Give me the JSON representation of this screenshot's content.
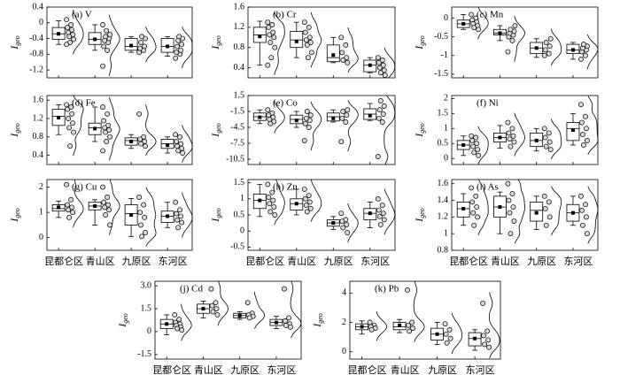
{
  "chart_data": [
    {
      "type": "box",
      "title": "(a) V",
      "ylabel": {
        "main": "I",
        "sub": "geo"
      },
      "ylim": [
        -1.4,
        0.4
      ],
      "yticks": [
        0.4,
        0,
        -0.4,
        -0.8,
        -1.2
      ],
      "boxes": [
        {
          "min": -0.55,
          "q1": -0.42,
          "median": -0.28,
          "q3": -0.12,
          "max": 0.05,
          "mean": -0.28,
          "points": [
            0.08,
            -0.05,
            -0.12,
            -0.18,
            -0.25,
            -0.3,
            -0.35,
            -0.42,
            -0.5,
            -0.55
          ]
        },
        {
          "min": -0.7,
          "q1": -0.55,
          "median": -0.42,
          "q3": -0.25,
          "max": -0.05,
          "mean": -0.42,
          "points": [
            -1.1,
            -0.7,
            -0.6,
            -0.5,
            -0.45,
            -0.4,
            -0.35,
            -0.3,
            -0.2,
            -0.05
          ]
        },
        {
          "min": -0.75,
          "q1": -0.7,
          "median": -0.6,
          "q3": -0.4,
          "max": -0.35,
          "mean": -0.58,
          "points": [
            -0.75,
            -0.7,
            -0.65,
            -0.6,
            -0.5,
            -0.4,
            -0.35
          ]
        },
        {
          "min": -0.85,
          "q1": -0.75,
          "median": -0.6,
          "q3": -0.4,
          "max": -0.35,
          "mean": -0.6,
          "points": [
            -0.9,
            -0.8,
            -0.75,
            -0.7,
            -0.6,
            -0.55,
            -0.45,
            -0.4,
            -0.35
          ]
        }
      ]
    },
    {
      "type": "box",
      "title": "(b) Cr",
      "ylabel": {
        "main": "I",
        "sub": "geo"
      },
      "ylim": [
        0.2,
        1.6
      ],
      "yticks": [
        1.6,
        1.2,
        0.8,
        0.4
      ],
      "boxes": [
        {
          "min": 0.45,
          "q1": 0.9,
          "median": 1.05,
          "q3": 1.2,
          "max": 1.32,
          "mean": 1.02,
          "points": [
            1.3,
            1.25,
            1.2,
            1.1,
            1.05,
            1.0,
            0.9,
            0.8,
            0.6,
            0.45
          ]
        },
        {
          "min": 0.6,
          "q1": 0.8,
          "median": 0.95,
          "q3": 1.12,
          "max": 1.3,
          "mean": 0.92,
          "points": [
            1.3,
            1.2,
            1.1,
            1.0,
            0.95,
            0.9,
            0.85,
            0.7,
            0.6
          ]
        },
        {
          "min": 0.5,
          "q1": 0.52,
          "median": 0.6,
          "q3": 0.85,
          "max": 1.0,
          "mean": 0.65,
          "points": [
            1.0,
            0.85,
            0.7,
            0.6,
            0.55,
            0.5
          ]
        },
        {
          "min": 0.3,
          "q1": 0.32,
          "median": 0.45,
          "q3": 0.55,
          "max": 0.6,
          "mean": 0.45,
          "points": [
            0.6,
            0.55,
            0.5,
            0.45,
            0.4,
            0.35,
            0.3,
            0.25
          ]
        }
      ]
    },
    {
      "type": "box",
      "title": "(c) Mn",
      "ylabel": {
        "main": "I",
        "sub": "geo"
      },
      "ylim": [
        -1.6,
        0.3
      ],
      "yticks": [
        0,
        -0.5,
        -1,
        -1.5
      ],
      "boxes": [
        {
          "min": -0.3,
          "q1": -0.25,
          "median": -0.15,
          "q3": -0.05,
          "max": 0.1,
          "mean": -0.15,
          "points": [
            0.1,
            0,
            -0.05,
            -0.1,
            -0.15,
            -0.2,
            -0.25,
            -0.3
          ]
        },
        {
          "min": -0.6,
          "q1": -0.45,
          "median": -0.4,
          "q3": -0.3,
          "max": -0.2,
          "mean": -0.4,
          "points": [
            -0.9,
            -0.6,
            -0.5,
            -0.45,
            -0.4,
            -0.35,
            -0.3,
            -0.2
          ]
        },
        {
          "min": -1.05,
          "q1": -0.95,
          "median": -0.8,
          "q3": -0.65,
          "max": -0.55,
          "mean": -0.8,
          "points": [
            -1.0,
            -0.95,
            -0.85,
            -0.75,
            -0.65,
            -0.55
          ]
        },
        {
          "min": -1.1,
          "q1": -0.95,
          "median": -0.85,
          "q3": -0.7,
          "max": -0.65,
          "mean": -0.85,
          "points": [
            -1.1,
            -1.0,
            -0.9,
            -0.85,
            -0.8,
            -0.75,
            -0.7
          ]
        }
      ]
    },
    {
      "type": "box",
      "title": "(d) Fe",
      "ylabel": {
        "main": "I",
        "sub": "geo"
      },
      "ylim": [
        0.2,
        1.7
      ],
      "yticks": [
        1.6,
        1.2,
        0.8,
        0.4
      ],
      "boxes": [
        {
          "min": 0.85,
          "q1": 1.05,
          "median": 1.25,
          "q3": 1.4,
          "max": 1.5,
          "mean": 1.22,
          "points": [
            1.5,
            1.45,
            1.4,
            1.3,
            1.2,
            1.1,
            1.0,
            0.9,
            0.6
          ]
        },
        {
          "min": 0.7,
          "q1": 0.85,
          "median": 1.0,
          "q3": 1.1,
          "max": 1.45,
          "mean": 0.98,
          "points": [
            1.45,
            1.3,
            1.15,
            1.05,
            1.0,
            0.95,
            0.9,
            0.8,
            0.7,
            0.5
          ]
        },
        {
          "min": 0.55,
          "q1": 0.62,
          "median": 0.72,
          "q3": 0.78,
          "max": 0.85,
          "mean": 0.7,
          "points": [
            1.3,
            0.8,
            0.75,
            0.7,
            0.65,
            0.6
          ]
        },
        {
          "min": 0.45,
          "q1": 0.55,
          "median": 0.65,
          "q3": 0.75,
          "max": 0.8,
          "mean": 0.62,
          "points": [
            0.85,
            0.8,
            0.7,
            0.65,
            0.6,
            0.55,
            0.5,
            0.45
          ]
        }
      ]
    },
    {
      "type": "box",
      "title": "(e) Co",
      "ylabel": {
        "main": "I",
        "sub": "geo"
      },
      "ylim": [
        -11.5,
        1.5
      ],
      "yticks": [
        1.5,
        -1.5,
        -4.5,
        -7.5,
        -10.5
      ],
      "boxes": [
        {
          "min": -3.8,
          "q1": -3.2,
          "median": -2.5,
          "q3": -1.8,
          "max": -1.2,
          "mean": -2.6,
          "points": [
            -1.2,
            -1.8,
            -2.2,
            -2.6,
            -3.0,
            -3.4,
            -3.8
          ]
        },
        {
          "min": -4.5,
          "q1": -3.8,
          "median": -3,
          "q3": -2.2,
          "max": -1.5,
          "mean": -3.2,
          "points": [
            -7,
            -4.5,
            -3.8,
            -3.2,
            -2.8,
            -2.2,
            -1.5
          ]
        },
        {
          "min": -3.5,
          "q1": -3.3,
          "median": -2.5,
          "q3": -1.8,
          "max": -1.2,
          "mean": -2.8,
          "points": [
            -7.2,
            -3.5,
            -2.8,
            -2.2,
            -1.5,
            -1.2
          ]
        },
        {
          "min": -3.2,
          "q1": -3,
          "median": -2,
          "q3": -1,
          "max": 0,
          "mean": -2.3,
          "points": [
            -10,
            -3.5,
            -2.8,
            -2,
            -1.2,
            -0.5,
            0.5
          ]
        }
      ]
    },
    {
      "type": "box",
      "title": "(f) Ni",
      "ylabel": {
        "main": "I",
        "sub": "geo"
      },
      "ylim": [
        -0.2,
        2.1
      ],
      "yticks": [
        2,
        1.5,
        1,
        0.5,
        0
      ],
      "boxes": [
        {
          "min": 0.1,
          "q1": 0.3,
          "median": 0.45,
          "q3": 0.6,
          "max": 0.75,
          "mean": 0.45,
          "points": [
            0.75,
            0.7,
            0.6,
            0.5,
            0.4,
            0.3,
            0.2,
            0.1
          ]
        },
        {
          "min": 0.35,
          "q1": 0.55,
          "median": 0.7,
          "q3": 0.85,
          "max": 1.1,
          "mean": 0.7,
          "points": [
            1.2,
            1.0,
            0.85,
            0.75,
            0.65,
            0.55,
            0.4
          ]
        },
        {
          "min": 0.25,
          "q1": 0.4,
          "median": 0.6,
          "q3": 0.85,
          "max": 1.0,
          "mean": 0.6,
          "points": [
            1.0,
            0.85,
            0.7,
            0.55,
            0.4,
            0.3
          ]
        },
        {
          "min": 0.45,
          "q1": 0.6,
          "median": 1.0,
          "q3": 1.2,
          "max": 1.5,
          "mean": 0.95,
          "points": [
            1.8,
            1.4,
            1.2,
            1.0,
            0.8,
            0.6,
            0.45
          ]
        }
      ]
    },
    {
      "type": "box",
      "title": "(g) Cu",
      "ylabel": {
        "main": "I",
        "sub": "geo"
      },
      "ylim": [
        -0.5,
        2.3
      ],
      "yticks": [
        2,
        1,
        0
      ],
      "categories": [
        "昆都仑区",
        "青山区",
        "九原区",
        "东河区"
      ],
      "boxes": [
        {
          "min": 0.8,
          "q1": 1.05,
          "median": 1.15,
          "q3": 1.3,
          "max": 1.45,
          "mean": 1.2,
          "points": [
            2.1,
            1.5,
            1.3,
            1.2,
            1.1,
            1.0,
            0.8
          ]
        },
        {
          "min": 0.5,
          "q1": 1.1,
          "median": 1.25,
          "q3": 1.4,
          "max": 1.5,
          "mean": 1.25,
          "points": [
            2.0,
            1.6,
            1.4,
            1.3,
            1.2,
            1.1,
            0.9,
            0.5
          ]
        },
        {
          "min": 0.05,
          "q1": 0.5,
          "median": 0.95,
          "q3": 1.3,
          "max": 1.55,
          "mean": 0.9,
          "points": [
            1.6,
            1.3,
            1.0,
            0.8,
            0.5,
            0.2,
            0.05
          ]
        },
        {
          "min": 0.4,
          "q1": 0.6,
          "median": 0.85,
          "q3": 1.05,
          "max": 1.4,
          "mean": 0.85,
          "points": [
            1.4,
            1.1,
            0.95,
            0.85,
            0.7,
            0.6,
            0.4
          ]
        }
      ]
    },
    {
      "type": "box",
      "title": "(h) Zn",
      "ylabel": {
        "main": "I",
        "sub": "geo"
      },
      "ylim": [
        -0.6,
        1.6
      ],
      "yticks": [
        1.5,
        1,
        0.5,
        0,
        -0.5
      ],
      "categories": [
        "昆都仑区",
        "青山区",
        "九原区",
        "东河区"
      ],
      "boxes": [
        {
          "min": 0.45,
          "q1": 0.7,
          "median": 0.95,
          "q3": 1.15,
          "max": 1.45,
          "mean": 0.95,
          "points": [
            1.45,
            1.2,
            1.05,
            0.95,
            0.85,
            0.75,
            0.6,
            0.5
          ]
        },
        {
          "min": 0.5,
          "q1": 0.65,
          "median": 0.85,
          "q3": 1.0,
          "max": 1.3,
          "mean": 0.85,
          "points": [
            1.3,
            1.1,
            1.0,
            0.9,
            0.8,
            0.7,
            0.6
          ]
        },
        {
          "min": 0.05,
          "q1": 0.15,
          "median": 0.25,
          "q3": 0.35,
          "max": 0.45,
          "mean": 0.25,
          "points": [
            0.55,
            0.35,
            0.3,
            0.2,
            0.1,
            -0.05
          ]
        },
        {
          "min": 0.1,
          "q1": 0.35,
          "median": 0.55,
          "q3": 0.7,
          "max": 0.9,
          "mean": 0.55,
          "points": [
            1.0,
            0.8,
            0.65,
            0.55,
            0.45,
            0.35,
            0.2
          ]
        }
      ]
    },
    {
      "type": "box",
      "title": "(i) As",
      "ylabel": {
        "main": "I",
        "sub": "geo"
      },
      "ylim": [
        0.8,
        1.65
      ],
      "yticks": [
        1.6,
        1.4,
        1.2,
        1,
        0.8
      ],
      "categories": [
        "昆都仑区",
        "青山区",
        "九原区",
        "东河区"
      ],
      "boxes": [
        {
          "min": 1.1,
          "q1": 1.2,
          "median": 1.3,
          "q3": 1.38,
          "max": 1.48,
          "mean": 1.3,
          "points": [
            1.55,
            1.45,
            1.38,
            1.32,
            1.25,
            1.2,
            1.1
          ]
        },
        {
          "min": 1.0,
          "q1": 1.2,
          "median": 1.32,
          "q3": 1.45,
          "max": 1.5,
          "mean": 1.32,
          "points": [
            1.6,
            1.48,
            1.4,
            1.32,
            1.25,
            1.15,
            1.0
          ]
        },
        {
          "min": 1.05,
          "q1": 1.15,
          "median": 1.28,
          "q3": 1.38,
          "max": 1.45,
          "mean": 1.25,
          "points": [
            1.45,
            1.38,
            1.3,
            1.2,
            1.1
          ]
        },
        {
          "min": 1.1,
          "q1": 1.15,
          "median": 1.25,
          "q3": 1.35,
          "max": 1.45,
          "mean": 1.25,
          "points": [
            1.45,
            1.35,
            1.28,
            1.2,
            1.1,
            1.0
          ]
        }
      ]
    },
    {
      "type": "box",
      "title": "(j) Cd",
      "ylabel": {
        "main": "I",
        "sub": "geo"
      },
      "ylim": [
        -1.8,
        3.3
      ],
      "yticks": [
        {
          "value": 3,
          "label": "3.0"
        },
        1.5,
        0,
        -1.5
      ],
      "categories": [
        "昆都仑区",
        "青山区",
        "九原区",
        "东河区"
      ],
      "boxes": [
        {
          "min": -0.2,
          "q1": 0.2,
          "median": 0.5,
          "q3": 0.8,
          "max": 1.1,
          "mean": 0.5,
          "points": [
            1.1,
            0.8,
            0.6,
            0.5,
            0.4,
            0.3,
            0.2,
            0.1
          ]
        },
        {
          "min": 0.9,
          "q1": 1.2,
          "median": 1.5,
          "q3": 1.8,
          "max": 2.0,
          "mean": 1.5,
          "points": [
            2.8,
            1.9,
            1.7,
            1.5,
            1.3,
            1.1
          ]
        },
        {
          "min": 0.8,
          "q1": 0.9,
          "median": 1.05,
          "q3": 1.2,
          "max": 1.3,
          "mean": 1.05,
          "points": [
            1.9,
            1.2,
            1.1,
            1.0,
            0.9
          ]
        },
        {
          "min": 0.2,
          "q1": 0.4,
          "median": 0.6,
          "q3": 0.8,
          "max": 1.0,
          "mean": 0.6,
          "points": [
            2.8,
            0.9,
            0.7,
            0.5,
            0.4,
            0.3
          ]
        }
      ]
    },
    {
      "type": "box",
      "title": "(k) Pb",
      "ylabel": {
        "main": "I",
        "sub": "geo"
      },
      "ylim": [
        -0.5,
        4.8
      ],
      "yticks": [
        4,
        2,
        0
      ],
      "categories": [
        "昆都仑区",
        "青山区",
        "九原区",
        "东河区"
      ],
      "boxes": [
        {
          "min": 1.2,
          "q1": 1.5,
          "median": 1.7,
          "q3": 1.9,
          "max": 2.1,
          "mean": 1.7,
          "points": [
            2.0,
            1.8,
            1.7,
            1.6,
            1.5
          ]
        },
        {
          "min": 1.3,
          "q1": 1.5,
          "median": 1.7,
          "q3": 2.0,
          "max": 2.2,
          "mean": 1.8,
          "points": [
            4.2,
            2.0,
            1.8,
            1.6,
            1.4
          ]
        },
        {
          "min": 0.5,
          "q1": 0.8,
          "median": 1.2,
          "q3": 1.6,
          "max": 2.0,
          "mean": 1.2,
          "points": [
            1.9,
            1.5,
            1.2,
            0.9,
            0.6
          ]
        },
        {
          "min": 0.1,
          "q1": 0.4,
          "median": 0.9,
          "q3": 1.3,
          "max": 1.5,
          "mean": 0.9,
          "points": [
            3.3,
            1.4,
            1.1,
            0.8,
            0.5,
            0.3
          ]
        }
      ]
    }
  ]
}
